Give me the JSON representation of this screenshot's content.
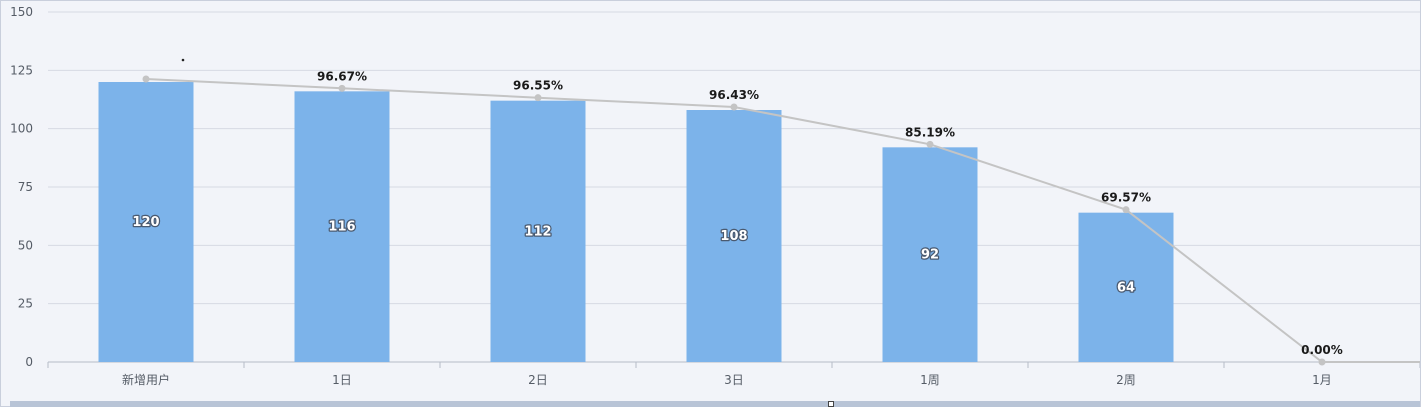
{
  "chart_data": {
    "type": "bar",
    "categories": [
      "新增用户",
      "1日",
      "2日",
      "3日",
      "1周",
      "2周",
      "1月"
    ],
    "values": [
      120,
      116,
      112,
      108,
      92,
      64,
      0
    ],
    "retention_labels": [
      "",
      "96.67%",
      "96.55%",
      "96.43%",
      "85.19%",
      "69.57%",
      "0.00%"
    ],
    "ylim": [
      0,
      150
    ],
    "yticks": [
      0,
      25,
      50,
      75,
      100,
      125,
      150
    ],
    "grid": true,
    "colors": {
      "bar": "#7cb3ea",
      "line": "#c4c4c4",
      "grid": "#d6dae3",
      "axis": "#b6bcc8"
    }
  }
}
